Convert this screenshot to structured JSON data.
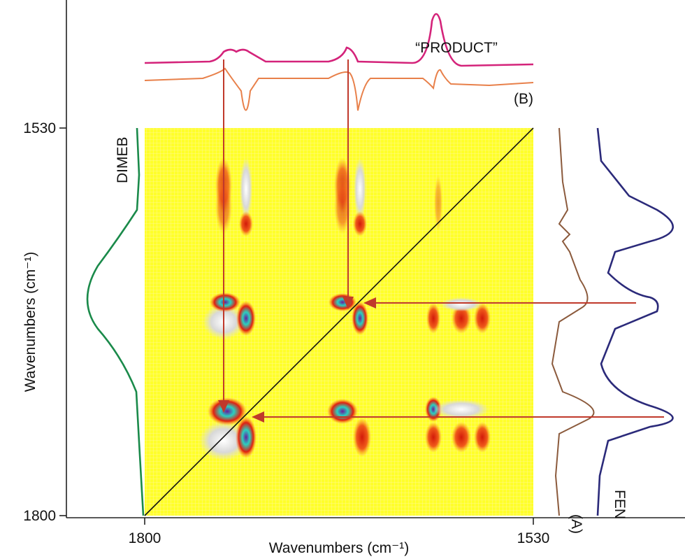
{
  "chart_data": {
    "type": "contour",
    "x_label": "Wavenumbers (cm⁻¹)",
    "y_label": "Wavenumbers (cm⁻¹)",
    "xlim": [
      1800,
      1530
    ],
    "ylim": [
      1800,
      1530
    ],
    "xticks": [
      1800,
      1530
    ],
    "yticks": [
      1800,
      1530
    ],
    "annotations": [
      "“PRODUCT”",
      "(B)",
      "DIMEB",
      "(A)",
      "FEN"
    ]
  }
}
